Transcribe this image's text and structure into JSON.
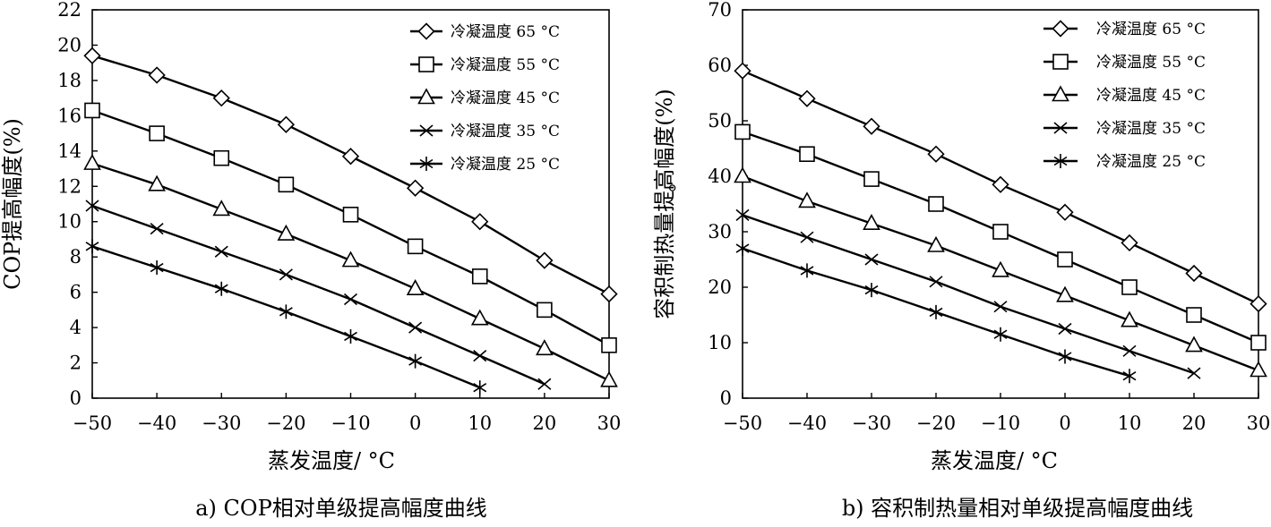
{
  "chart_data": [
    {
      "type": "line",
      "caption": "a) COP相对单级提高幅度曲线",
      "xlabel": "蒸发温度/ °C",
      "ylabel": "COP提高幅度(%)",
      "xlim": [
        -50,
        30
      ],
      "ylim": [
        0,
        22
      ],
      "xticks": [
        -50,
        -40,
        -30,
        -20,
        -10,
        0,
        10,
        20,
        30
      ],
      "yticks": [
        0,
        2,
        4,
        6,
        8,
        10,
        12,
        14,
        16,
        18,
        20,
        22
      ],
      "grid": false,
      "legend_position": "top-right",
      "series": [
        {
          "name": "冷凝温度 65 °C",
          "marker": "diamond",
          "x": [
            -50,
            -40,
            -30,
            -20,
            -10,
            0,
            10,
            20,
            30
          ],
          "y": [
            19.4,
            18.3,
            17.0,
            15.5,
            13.7,
            11.9,
            10.0,
            7.8,
            5.9
          ]
        },
        {
          "name": "冷凝温度 55 °C",
          "marker": "square",
          "x": [
            -50,
            -40,
            -30,
            -20,
            -10,
            0,
            10,
            20,
            30
          ],
          "y": [
            16.3,
            15.0,
            13.6,
            12.1,
            10.4,
            8.6,
            6.9,
            5.0,
            3.0
          ]
        },
        {
          "name": "冷凝温度 45 °C",
          "marker": "triangle",
          "x": [
            -50,
            -40,
            -30,
            -20,
            -10,
            0,
            10,
            20,
            30
          ],
          "y": [
            13.3,
            12.1,
            10.7,
            9.3,
            7.8,
            6.2,
            4.5,
            2.8,
            1.0
          ]
        },
        {
          "name": "冷凝温度 35 °C",
          "marker": "x",
          "x": [
            -50,
            -40,
            -30,
            -20,
            -10,
            0,
            10,
            20
          ],
          "y": [
            10.9,
            9.6,
            8.3,
            7.0,
            5.6,
            4.0,
            2.4,
            0.8
          ]
        },
        {
          "name": "冷凝温度 25 °C",
          "marker": "asterisk",
          "x": [
            -50,
            -40,
            -30,
            -20,
            -10,
            0,
            10
          ],
          "y": [
            8.6,
            7.4,
            6.2,
            4.9,
            3.5,
            2.1,
            0.6
          ]
        }
      ]
    },
    {
      "type": "line",
      "caption": "b) 容积制热量相对单级提高幅度曲线",
      "xlabel": "蒸发温度/ °C",
      "ylabel": "容积制热量提高幅度(%)",
      "ylabel_mark": "。",
      "xlim": [
        -50,
        30
      ],
      "ylim": [
        0,
        70
      ],
      "xticks": [
        -50,
        -40,
        -30,
        -20,
        -10,
        0,
        10,
        20,
        30
      ],
      "yticks": [
        0,
        10,
        20,
        30,
        40,
        50,
        60,
        70
      ],
      "grid": false,
      "legend_position": "top-right",
      "series": [
        {
          "name": "冷凝温度 65 °C",
          "marker": "diamond",
          "x": [
            -50,
            -40,
            -30,
            -20,
            -10,
            0,
            10,
            20,
            30
          ],
          "y": [
            59.0,
            54.0,
            49.0,
            44.0,
            38.5,
            33.5,
            28.0,
            22.5,
            17.0
          ]
        },
        {
          "name": "冷凝温度 55 °C",
          "marker": "square",
          "x": [
            -50,
            -40,
            -30,
            -20,
            -10,
            0,
            10,
            20,
            30
          ],
          "y": [
            48.0,
            44.0,
            39.5,
            35.0,
            30.0,
            25.0,
            20.0,
            15.0,
            10.0
          ]
        },
        {
          "name": "冷凝温度 45 °C",
          "marker": "triangle",
          "x": [
            -50,
            -40,
            -30,
            -20,
            -10,
            0,
            10,
            20,
            30
          ],
          "y": [
            40.0,
            35.5,
            31.5,
            27.5,
            23.0,
            18.5,
            14.0,
            9.5,
            5.0
          ]
        },
        {
          "name": "冷凝温度 35 °C",
          "marker": "x",
          "x": [
            -50,
            -40,
            -30,
            -20,
            -10,
            0,
            10,
            20
          ],
          "y": [
            33.0,
            29.0,
            25.0,
            21.0,
            16.5,
            12.5,
            8.5,
            4.5
          ]
        },
        {
          "name": "冷凝温度 25 °C",
          "marker": "asterisk",
          "x": [
            -50,
            -40,
            -30,
            -20,
            -10,
            0,
            10
          ],
          "y": [
            27.0,
            23.0,
            19.5,
            15.5,
            11.5,
            7.5,
            4.0
          ]
        }
      ]
    }
  ]
}
